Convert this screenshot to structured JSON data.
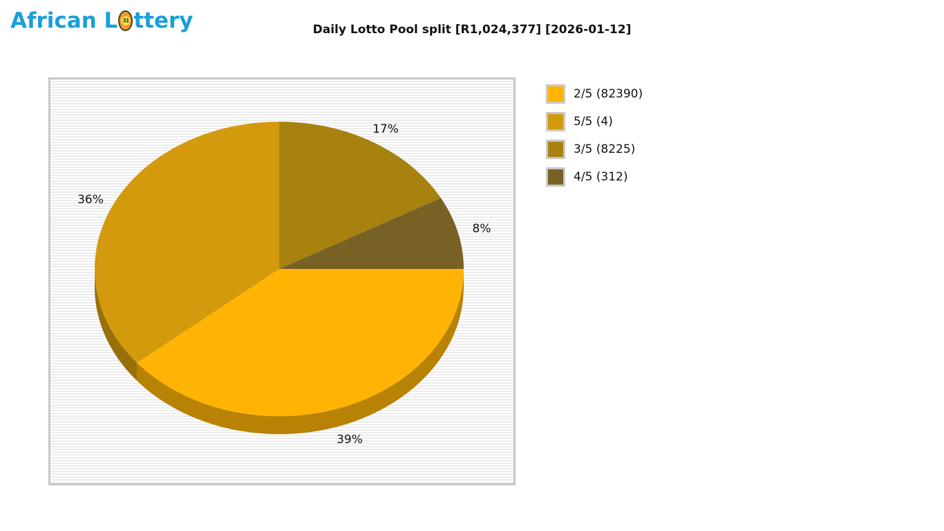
{
  "logo": {
    "part1": "African L",
    "part2": "ttery",
    "ball_text": "31"
  },
  "header": {
    "title": "Daily Lotto Pool split [R1,024,377] [2026-01-12]"
  },
  "chart_data": {
    "type": "pie",
    "title": "Daily Lotto Pool split [R1,024,377] [2026-01-12]",
    "pool_total": "R1,024,377",
    "draw_date": "2026-01-12",
    "start_angle_deg": 90,
    "direction": "clockwise",
    "effect_3d": true,
    "slices": [
      {
        "name": "3/5",
        "winners": 8225,
        "pct": 17,
        "color": "#A8820F"
      },
      {
        "name": "4/5",
        "winners": 312,
        "pct": 8,
        "color": "#776124"
      },
      {
        "name": "2/5",
        "winners": 82390,
        "pct": 39,
        "color": "#FFB405"
      },
      {
        "name": "5/5",
        "winners": 4,
        "pct": 36,
        "color": "#D49A0D"
      }
    ],
    "percent_labels": [
      "17%",
      "8%",
      "39%",
      "36%"
    ],
    "legend_position": "right",
    "legend": [
      {
        "label": "2/5 (82390)",
        "color": "#FFB405"
      },
      {
        "label": "5/5 (4)",
        "color": "#D49A0D"
      },
      {
        "label": "3/5 (8225)",
        "color": "#A8820F"
      },
      {
        "label": "4/5 (312)",
        "color": "#776124"
      }
    ]
  }
}
